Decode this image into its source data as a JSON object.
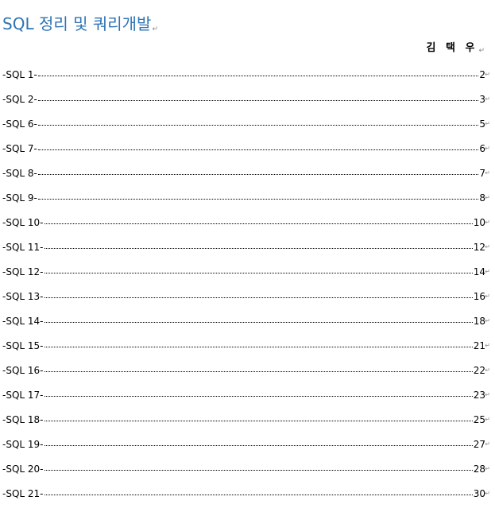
{
  "document": {
    "title": "SQL 정리 및 쿼리개발",
    "author": "김 택 우",
    "paragraph_mark": "↵"
  },
  "toc": {
    "entries": [
      {
        "label": "-SQL 1-",
        "page": "2"
      },
      {
        "label": "-SQL 2-",
        "page": "3"
      },
      {
        "label": "-SQL 6-",
        "page": "5"
      },
      {
        "label": "-SQL 7-",
        "page": "6"
      },
      {
        "label": "-SQL 8-",
        "page": "7"
      },
      {
        "label": "-SQL 9-",
        "page": "8"
      },
      {
        "label": "-SQL 10-",
        "page": "10"
      },
      {
        "label": "-SQL 11-",
        "page": "12"
      },
      {
        "label": "-SQL 12-",
        "page": "14"
      },
      {
        "label": "-SQL 13-",
        "page": "16"
      },
      {
        "label": "-SQL 14-",
        "page": "18"
      },
      {
        "label": "-SQL 15-",
        "page": "21"
      },
      {
        "label": "-SQL 16-",
        "page": "22"
      },
      {
        "label": "-SQL 17-",
        "page": "23"
      },
      {
        "label": "-SQL 18-",
        "page": "25"
      },
      {
        "label": "-SQL 19-",
        "page": "27"
      },
      {
        "label": "-SQL 20-",
        "page": "28"
      },
      {
        "label": "-SQL 21-",
        "page": "30"
      }
    ]
  }
}
